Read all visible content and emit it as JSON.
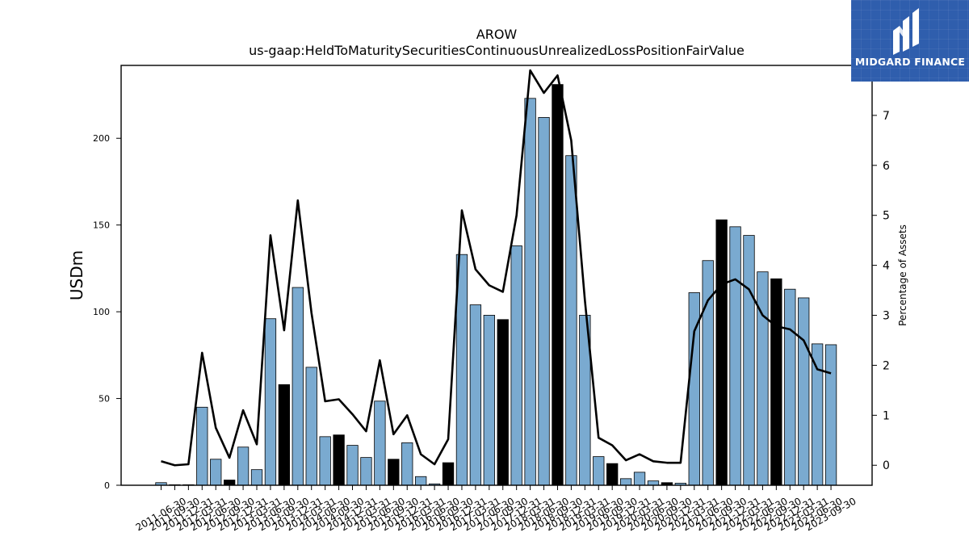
{
  "chart_data": {
    "type": "bar",
    "title": "AROW",
    "subtitle": "us-gaap:HeldToMaturitySecuritiesContinuousUnrealizedLossPositionFairValue",
    "ylabel": "USDm",
    "y2label": "Percentage of Assets",
    "ylim": [
      0,
      242
    ],
    "y2lim": [
      -0.4,
      8
    ],
    "yticks": [
      0,
      50,
      100,
      150,
      200
    ],
    "y2ticks": [
      0,
      1,
      2,
      3,
      4,
      5,
      6,
      7,
      8
    ],
    "categories": [
      "2011-06-30",
      "2011-09-30",
      "2011-12-31",
      "2012-03-31",
      "2012-06-30",
      "2012-09-30",
      "2012-12-31",
      "2013-03-31",
      "2013-06-30",
      "2013-09-30",
      "2013-12-31",
      "2014-03-31",
      "2014-06-30",
      "2014-09-30",
      "2014-12-31",
      "2015-03-31",
      "2015-06-30",
      "2015-09-30",
      "2015-12-31",
      "2016-03-31",
      "2016-06-30",
      "2016-09-30",
      "2016-12-31",
      "2017-03-31",
      "2017-06-30",
      "2017-09-30",
      "2017-12-31",
      "2018-03-31",
      "2018-06-30",
      "2018-09-30",
      "2018-12-31",
      "2019-03-31",
      "2019-06-30",
      "2019-09-30",
      "2019-12-31",
      "2020-03-31",
      "2020-06-30",
      "2020-09-30",
      "2020-12-31",
      "2021-03-31",
      "2021-06-30",
      "2021-09-30",
      "2021-12-31",
      "2022-03-31",
      "2022-06-30",
      "2022-09-30",
      "2022-12-31",
      "2023-03-31",
      "2023-06-30",
      "2023-09-30"
    ],
    "series": [
      {
        "type": "bar",
        "axis": "left",
        "values": [
          1.5,
          0.3,
          0.3,
          45,
          15,
          3,
          22,
          9,
          96,
          58,
          114,
          68,
          28,
          29,
          23,
          16,
          48.5,
          15,
          24.5,
          5,
          0.8,
          13,
          133,
          104,
          98,
          95.5,
          138,
          223,
          212,
          231,
          190,
          98,
          16.5,
          12.5,
          3.8,
          7.5,
          2.5,
          1.5,
          1.2,
          111,
          129.5,
          153,
          149,
          144,
          123,
          119,
          113,
          108,
          81.5,
          81
        ],
        "highlight": [
          false,
          false,
          false,
          false,
          false,
          true,
          false,
          false,
          false,
          true,
          false,
          false,
          false,
          true,
          false,
          false,
          false,
          true,
          false,
          false,
          false,
          true,
          false,
          false,
          false,
          true,
          false,
          false,
          false,
          true,
          false,
          false,
          false,
          true,
          false,
          false,
          false,
          true,
          false,
          false,
          false,
          true,
          false,
          false,
          false,
          true,
          false,
          false,
          false,
          false
        ]
      },
      {
        "type": "line",
        "axis": "right",
        "values": [
          0.08,
          0.0,
          0.02,
          2.25,
          0.75,
          0.15,
          1.1,
          0.42,
          4.6,
          2.7,
          5.3,
          3.05,
          1.28,
          1.32,
          1.02,
          0.68,
          2.1,
          0.62,
          1.0,
          0.22,
          0.02,
          0.52,
          5.1,
          3.92,
          3.6,
          3.47,
          5.0,
          7.9,
          7.45,
          7.8,
          6.5,
          3.3,
          0.55,
          0.4,
          0.1,
          0.22,
          0.08,
          0.05,
          0.05,
          2.68,
          3.3,
          3.62,
          3.72,
          3.52,
          3.0,
          2.78,
          2.72,
          2.5,
          1.92,
          1.84
        ]
      }
    ],
    "colors": {
      "bar": "#7aaad0",
      "bar_highlight": "#000000",
      "bar_edge": "#000000",
      "line": "#000000"
    }
  },
  "logo": {
    "text": "MIDGARD FINANCE",
    "background": "#2f5ead"
  }
}
